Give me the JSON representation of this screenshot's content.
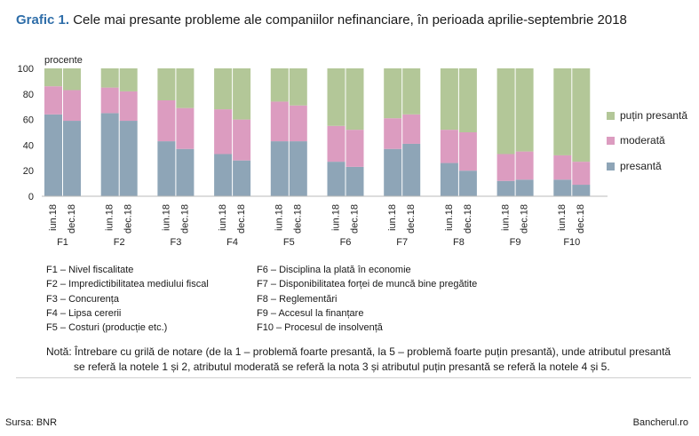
{
  "title": {
    "lead": "Grafic 1.",
    "rest": "Cele mai presante probleme ale companiilor nefinanciare, în perioada aprilie-septembrie 2018"
  },
  "colors": {
    "presanta": "#8ea5b7",
    "moderata": "#dc9cc0",
    "putin": "#b3c798"
  },
  "chart_data": {
    "type": "bar",
    "stacked": true,
    "ylabel": "procente",
    "ylim": [
      0,
      100
    ],
    "yticks": [
      0,
      20,
      40,
      60,
      80,
      100
    ],
    "groups": [
      "F1",
      "F2",
      "F3",
      "F4",
      "F5",
      "F6",
      "F7",
      "F8",
      "F9",
      "F10"
    ],
    "periods": [
      "iun.18",
      "dec.18"
    ],
    "series": [
      {
        "name": "presantă",
        "values": [
          [
            64,
            59
          ],
          [
            65,
            59
          ],
          [
            43,
            37
          ],
          [
            33,
            28
          ],
          [
            43,
            43
          ],
          [
            27,
            23
          ],
          [
            37,
            41
          ],
          [
            26,
            20
          ],
          [
            12,
            13
          ],
          [
            13,
            9
          ]
        ]
      },
      {
        "name": "moderată",
        "values": [
          [
            22,
            24
          ],
          [
            20,
            23
          ],
          [
            32,
            32
          ],
          [
            35,
            32
          ],
          [
            31,
            28
          ],
          [
            28,
            29
          ],
          [
            24,
            23
          ],
          [
            26,
            30
          ],
          [
            21,
            22
          ],
          [
            19,
            18
          ]
        ]
      },
      {
        "name": "puțin presantă",
        "values": [
          [
            14,
            17
          ],
          [
            15,
            18
          ],
          [
            25,
            31
          ],
          [
            32,
            40
          ],
          [
            26,
            29
          ],
          [
            45,
            48
          ],
          [
            39,
            36
          ],
          [
            48,
            50
          ],
          [
            67,
            65
          ],
          [
            68,
            73
          ]
        ]
      }
    ],
    "legend": {
      "placement": "right",
      "order": [
        "puțin presantă",
        "moderată",
        "presantă"
      ]
    }
  },
  "definitions_left": [
    "F1 – Nivel fiscalitate",
    "F2 – Impredictibilitatea mediului fiscal",
    "F3 – Concurența",
    "F4 – Lipsa cererii",
    "F5 – Costuri (producție etc.)"
  ],
  "definitions_right": [
    "F6 – Disciplina la plată în economie",
    "F7 – Disponibilitatea forței de muncă bine pregătite",
    "F8 – Reglementări",
    "F9 – Accesul la finanțare",
    "F10 – Procesul de insolvență"
  ],
  "note": {
    "line1": "Notă: Întrebare cu grilă de notare (de la 1 – problemă foarte presantă, la 5 – problemă foarte puțin presantă), unde atributul presantă",
    "line2": "se referă la notele 1 și 2, atributul moderată se referă la nota 3 și atributul puțin presantă se referă la notele 4 și 5."
  },
  "footer": {
    "source": "Sursa: BNR",
    "brand": "Bancherul.ro"
  }
}
